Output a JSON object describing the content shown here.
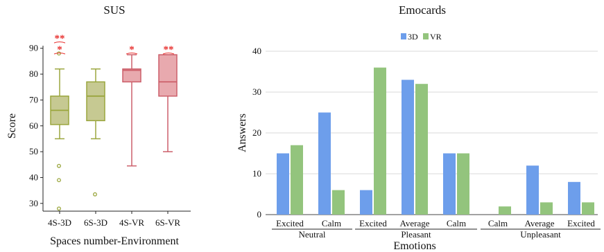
{
  "chart_data": [
    {
      "type": "box",
      "title": "SUS",
      "xlabel": "Spaces number-Environment",
      "ylabel": "Score",
      "ylim": [
        27,
        91
      ],
      "yticks": [
        30,
        40,
        50,
        60,
        70,
        80,
        90
      ],
      "categories": [
        "4S-3D",
        "6S-3D",
        "4S-VR",
        "6S-VR"
      ],
      "boxes": [
        {
          "category": "4S-3D",
          "min": 55,
          "q1": 60.5,
          "median": 66,
          "q3": 71.5,
          "max": 82,
          "outliers": [
            88,
            44.5,
            39,
            28
          ],
          "color": "#9aa63d",
          "fill": "#c6c992"
        },
        {
          "category": "6S-3D",
          "min": 55,
          "q1": 62,
          "median": 71.5,
          "q3": 77,
          "max": 82,
          "outliers": [
            33.5
          ],
          "color": "#9aa63d",
          "fill": "#c6c992"
        },
        {
          "category": "4S-VR",
          "min": 44.5,
          "q1": 77,
          "median": 81.5,
          "q3": 82,
          "max": 87.5,
          "outliers": [],
          "color": "#cc5f6a",
          "fill": "#e8a9ae"
        },
        {
          "category": "6S-VR",
          "min": 50,
          "q1": 71.5,
          "median": 77,
          "q3": 87.5,
          "max": 87.5,
          "outliers": [],
          "color": "#cc5f6a",
          "fill": "#e8a9ae"
        }
      ],
      "annotations": [
        {
          "category": "4S-3D",
          "label": "**"
        },
        {
          "category": "4S-3D",
          "label": "*"
        },
        {
          "category": "4S-VR",
          "label": "*"
        },
        {
          "category": "6S-VR",
          "label": "**"
        }
      ],
      "annotation_color": "#e8312f"
    },
    {
      "type": "bar",
      "title": "Emocards",
      "xlabel": "Emotions",
      "ylabel": "Answers",
      "ylim": [
        0,
        40
      ],
      "yticks": [
        0,
        10,
        20,
        30,
        40
      ],
      "legend_position": "top",
      "categories": [
        "Excited",
        "Calm",
        "Excited",
        "Average",
        "Calm",
        "Calm",
        "Average",
        "Excited"
      ],
      "groups": [
        {
          "label": "Neutral",
          "categories": [
            0,
            1
          ]
        },
        {
          "label": "Pleasant",
          "categories": [
            2,
            3,
            4
          ]
        },
        {
          "label": "Unpleasant",
          "categories": [
            5,
            6,
            7
          ]
        }
      ],
      "series": [
        {
          "name": "3D",
          "color": "#6d9eeb",
          "values": [
            15,
            25,
            6,
            33,
            15,
            0,
            12,
            8
          ]
        },
        {
          "name": "VR",
          "color": "#93c47d",
          "values": [
            17,
            6,
            36,
            32,
            15,
            2,
            3,
            3
          ]
        }
      ]
    }
  ]
}
